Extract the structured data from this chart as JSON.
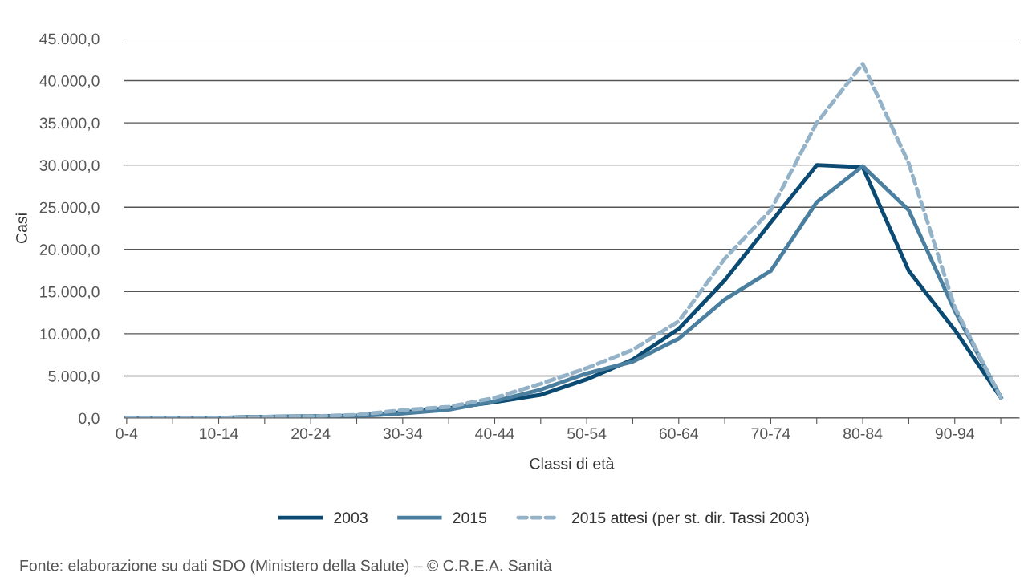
{
  "chart_data": {
    "type": "line",
    "xlabel": "Classi di età",
    "ylabel": "Casi",
    "categories": [
      "0-4",
      null,
      "10-14",
      null,
      "20-24",
      null,
      "30-34",
      null,
      "40-44",
      null,
      "50-54",
      null,
      "60-64",
      null,
      "70-74",
      null,
      "80-84",
      null,
      "90-94",
      null
    ],
    "series": [
      {
        "name": "2003",
        "color": "#0b4a73",
        "line_style": "solid",
        "values": [
          0,
          10,
          30,
          150,
          200,
          300,
          700,
          1170,
          1900,
          2760,
          4600,
          6950,
          10580,
          16340,
          23200,
          30000,
          29750,
          17450,
          10450,
          2430
        ]
      },
      {
        "name": "2015",
        "color": "#4a7fa0",
        "line_style": "solid",
        "values": [
          0,
          10,
          30,
          150,
          200,
          220,
          540,
          1000,
          2000,
          3370,
          5300,
          6700,
          9420,
          14070,
          17450,
          25600,
          29880,
          24650,
          12720,
          2500
        ]
      },
      {
        "name": "2015 attesi (per st. dir. Tassi 2003)",
        "color": "#94b3c8",
        "line_style": "dashed",
        "values": [
          0,
          10,
          30,
          150,
          200,
          380,
          950,
          1330,
          2400,
          4070,
          5930,
          8100,
          11480,
          18900,
          24650,
          35000,
          42000,
          30200,
          13130,
          2430
        ]
      }
    ],
    "ylim": [
      0,
      45000
    ],
    "yticks": [
      {
        "value": 0,
        "label": "0,0"
      },
      {
        "value": 5000,
        "label": "5.000,0"
      },
      {
        "value": 10000,
        "label": "10.000,0"
      },
      {
        "value": 15000,
        "label": "15.000,0"
      },
      {
        "value": 20000,
        "label": "20.000,0"
      },
      {
        "value": 25000,
        "label": "25.000,0"
      },
      {
        "value": 30000,
        "label": "30.000,0"
      },
      {
        "value": 35000,
        "label": "35.000,0"
      },
      {
        "value": 40000,
        "label": "40.000,0"
      },
      {
        "value": 45000,
        "label": "45.000,0"
      }
    ],
    "grid": "y",
    "legend": "bottom",
    "marker": "none",
    "annotations": [
      "Fonte: elaborazione su dati SDO (Ministero della Salute) – © C.R.E.A. Sanità"
    ]
  }
}
